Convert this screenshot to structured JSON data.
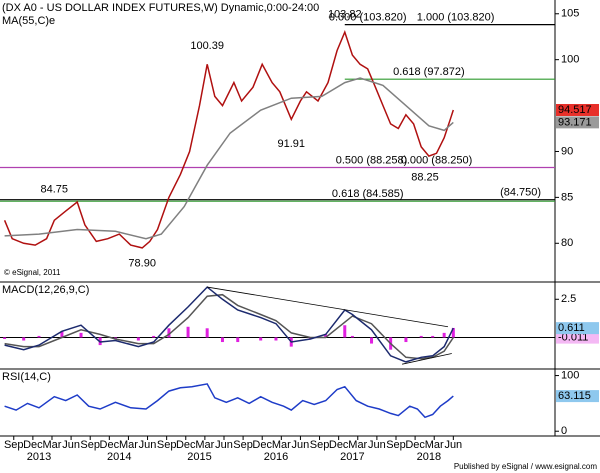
{
  "chart_data": [
    {
      "type": "line",
      "title": "(DX A0 - US DOLLAR INDEX FUTURES,W) Dynamic,0:00-24:00",
      "subtitle": "MA(55,C)e",
      "note": "© eSignal, 2011",
      "xlim": [
        2012.49,
        2019.75
      ],
      "ylim": [
        76,
        106.5
      ],
      "yticks": [
        80,
        85,
        90,
        100,
        105
      ],
      "series": [
        {
          "name": "DX A0",
          "color": "#b01010",
          "box_color": "#e8302a",
          "x": [
            2012.55,
            2012.65,
            2012.8,
            2012.95,
            2013.1,
            2013.2,
            2013.35,
            2013.5,
            2013.6,
            2013.75,
            2013.9,
            2014.05,
            2014.2,
            2014.35,
            2014.45,
            2014.55,
            2014.7,
            2014.85,
            2014.97,
            2015.1,
            2015.2,
            2015.3,
            2015.4,
            2015.55,
            2015.65,
            2015.8,
            2015.92,
            2016.05,
            2016.15,
            2016.3,
            2016.42,
            2016.5,
            2016.65,
            2016.78,
            2016.9,
            2017.0,
            2017.1,
            2017.2,
            2017.3,
            2017.4,
            2017.5,
            2017.6,
            2017.7,
            2017.8,
            2017.9,
            2018.0,
            2018.1,
            2018.2,
            2018.3,
            2018.38,
            2018.42
          ],
          "values": [
            82.5,
            80.5,
            80.0,
            79.8,
            80.5,
            82.5,
            83.5,
            84.5,
            82.0,
            80.2,
            80.5,
            81.0,
            79.8,
            79.5,
            80.2,
            81.5,
            85.0,
            87.5,
            90.0,
            95.0,
            99.5,
            96.0,
            95.0,
            97.5,
            95.5,
            97.0,
            99.5,
            97.5,
            96.5,
            93.5,
            95.5,
            96.5,
            95.5,
            97.5,
            101.0,
            103.0,
            100.5,
            99.5,
            99.0,
            97.0,
            95.0,
            93.0,
            92.5,
            94.0,
            93.0,
            90.5,
            89.5,
            89.8,
            91.5,
            93.5,
            94.517
          ]
        },
        {
          "name": "MA(55,C)e",
          "color": "#808080",
          "box_color": "#9a9a9a",
          "x": [
            2012.55,
            2013.0,
            2013.5,
            2014.0,
            2014.4,
            2014.6,
            2014.9,
            2015.2,
            2015.5,
            2015.9,
            2016.3,
            2016.7,
            2017.0,
            2017.2,
            2017.5,
            2017.8,
            2018.1,
            2018.3,
            2018.42
          ],
          "values": [
            80.8,
            81.0,
            81.5,
            81.3,
            80.5,
            81.0,
            84.0,
            88.5,
            92.0,
            94.5,
            95.8,
            96.0,
            97.5,
            98.0,
            97.2,
            95.0,
            92.8,
            92.3,
            93.171
          ]
        }
      ],
      "levels": [
        {
          "value": 103.82,
          "from": 2017.0,
          "color": "#000000",
          "labels": [
            {
              "text": "0.000 (103.820)",
              "x": 2017.3
            },
            {
              "text": "1.000 (103.820)",
              "x": 2018.45
            }
          ]
        },
        {
          "value": 97.872,
          "from": 2017.0,
          "color": "#2e9a2e",
          "labels": [
            {
              "text": "0.618 (97.872)",
              "x": 2018.1
            }
          ]
        },
        {
          "value": 88.258,
          "from": 2012.49,
          "color": "#b040b0",
          "labels": [
            {
              "text": "0.500 (88.258)",
              "x": 2017.35
            },
            {
              "text": "0.000 (88.250)",
              "x": 2018.2
            }
          ]
        },
        {
          "value": 84.75,
          "from": 2012.49,
          "color": "#000000",
          "labels": [
            {
              "text": "(84.750)",
              "x": 2019.3
            }
          ]
        },
        {
          "value": 84.585,
          "from": 2012.49,
          "color": "#2e9a2e",
          "labels": [
            {
              "text": "0.618 (84.585)",
              "x": 2017.3
            }
          ]
        }
      ],
      "annotations": [
        {
          "label": "84.75",
          "value": 84.75,
          "x": 2013.2
        },
        {
          "label": "78.90",
          "value": 78.9,
          "x": 2014.35
        },
        {
          "label": "100.39",
          "value": 100.39,
          "x": 2015.2
        },
        {
          "label": "91.91",
          "value": 91.91,
          "x": 2016.3
        },
        {
          "label": "103.82",
          "value": 103.82,
          "x": 2017.0
        },
        {
          "label": "88.25",
          "value": 88.25,
          "x": 2018.05
        }
      ]
    },
    {
      "type": "line",
      "title": "MACD(12,26,9,C)",
      "xlim": [
        2012.49,
        2019.75
      ],
      "ylim": [
        -2,
        3.5
      ],
      "yticks": [
        2.5
      ],
      "series": [
        {
          "name": "hist",
          "type": "bar",
          "color": "#e020e0",
          "x": [
            2012.55,
            2012.8,
            2013.0,
            2013.3,
            2013.55,
            2013.8,
            2014.0,
            2014.3,
            2014.5,
            2014.7,
            2014.95,
            2015.2,
            2015.4,
            2015.6,
            2015.9,
            2016.1,
            2016.3,
            2016.55,
            2016.75,
            2017.0,
            2017.1,
            2017.35,
            2017.6,
            2017.8,
            2018.0,
            2018.15,
            2018.3,
            2018.42
          ],
          "values": [
            -0.1,
            -0.2,
            0.1,
            0.4,
            0.3,
            -0.5,
            -0.1,
            -0.2,
            0.1,
            0.6,
            0.7,
            0.6,
            -0.3,
            -0.3,
            -0.2,
            -0.2,
            -0.6,
            -0.1,
            0.2,
            0.8,
            0.1,
            -0.4,
            -0.8,
            -0.3,
            0.1,
            0.1,
            0.3,
            0.622
          ]
        },
        {
          "name": "signal",
          "color": "#555555",
          "box_color": "#f4b8f4",
          "x": [
            2012.55,
            2012.8,
            2013.0,
            2013.3,
            2013.55,
            2013.8,
            2014.0,
            2014.3,
            2014.5,
            2014.7,
            2014.95,
            2015.2,
            2015.4,
            2015.6,
            2015.9,
            2016.1,
            2016.3,
            2016.55,
            2016.75,
            2017.0,
            2017.1,
            2017.35,
            2017.6,
            2017.8,
            2018.0,
            2018.15,
            2018.3,
            2018.42
          ],
          "values": [
            -0.4,
            -0.6,
            -0.6,
            0.0,
            0.5,
            0.2,
            -0.1,
            -0.4,
            -0.4,
            0.2,
            1.3,
            2.7,
            2.8,
            2.1,
            1.5,
            1.1,
            0.3,
            0.0,
            0.0,
            1.0,
            1.4,
            0.9,
            -0.4,
            -1.3,
            -1.4,
            -1.3,
            -0.9,
            -0.011
          ]
        },
        {
          "name": "macd",
          "color": "#1c2a6e",
          "box_color": "#8ec8ee",
          "x": [
            2012.55,
            2012.8,
            2013.0,
            2013.3,
            2013.55,
            2013.8,
            2014.0,
            2014.3,
            2014.5,
            2014.7,
            2014.95,
            2015.2,
            2015.4,
            2015.6,
            2015.9,
            2016.1,
            2016.3,
            2016.55,
            2016.75,
            2017.0,
            2017.1,
            2017.35,
            2017.6,
            2017.8,
            2018.0,
            2018.15,
            2018.3,
            2018.42
          ],
          "values": [
            -0.5,
            -0.8,
            -0.5,
            0.4,
            0.8,
            -0.3,
            -0.2,
            -0.6,
            -0.3,
            0.8,
            2.0,
            3.3,
            2.5,
            1.8,
            1.3,
            0.9,
            -0.3,
            -0.1,
            0.2,
            1.8,
            1.5,
            0.5,
            -1.2,
            -1.6,
            -1.3,
            -1.2,
            -0.6,
            0.611
          ]
        }
      ],
      "trendlines": [
        {
          "x": [
            2015.2,
            2018.35
          ],
          "values": [
            3.3,
            0.7
          ]
        },
        {
          "x": [
            2017.75,
            2018.4
          ],
          "values": [
            -1.75,
            -1.05
          ]
        }
      ]
    },
    {
      "type": "line",
      "title": "RSI(14,C)",
      "xlim": [
        2012.49,
        2019.75
      ],
      "ylim": [
        -5,
        110
      ],
      "yticks": [
        0,
        100
      ],
      "series": [
        {
          "name": "RSI",
          "color": "#1e3cc8",
          "box_color": "#8ec8ee",
          "x": [
            2012.55,
            2012.7,
            2012.85,
            2013.0,
            2013.2,
            2013.35,
            2013.5,
            2013.65,
            2013.8,
            2014.0,
            2014.2,
            2014.4,
            2014.55,
            2014.7,
            2014.85,
            2015.0,
            2015.2,
            2015.3,
            2015.45,
            2015.6,
            2015.75,
            2015.9,
            2016.05,
            2016.2,
            2016.3,
            2016.45,
            2016.6,
            2016.75,
            2016.9,
            2017.0,
            2017.15,
            2017.3,
            2017.45,
            2017.6,
            2017.7,
            2017.85,
            2017.95,
            2018.05,
            2018.15,
            2018.25,
            2018.35,
            2018.42
          ],
          "values": [
            45,
            38,
            50,
            42,
            62,
            55,
            65,
            45,
            40,
            52,
            42,
            40,
            55,
            72,
            78,
            80,
            85,
            60,
            52,
            60,
            50,
            62,
            52,
            45,
            38,
            55,
            48,
            55,
            75,
            80,
            55,
            45,
            40,
            32,
            28,
            45,
            40,
            25,
            30,
            45,
            55,
            63.115
          ]
        }
      ],
      "xticks": [
        {
          "value": 2012.67,
          "label": "Sep"
        },
        {
          "value": 2012.92,
          "label": "Dec"
        },
        {
          "value": 2013.17,
          "label": "Mar"
        },
        {
          "value": 2013.42,
          "label": "Jun"
        },
        {
          "value": 2013.67,
          "label": "Sep"
        },
        {
          "value": 2013.92,
          "label": "Dec"
        },
        {
          "value": 2014.17,
          "label": "Mar"
        },
        {
          "value": 2014.42,
          "label": "Jun"
        },
        {
          "value": 2014.67,
          "label": "Sep"
        },
        {
          "value": 2014.92,
          "label": "Dec"
        },
        {
          "value": 2015.17,
          "label": "Mar"
        },
        {
          "value": 2015.42,
          "label": "Jun"
        },
        {
          "value": 2015.67,
          "label": "Sep"
        },
        {
          "value": 2015.92,
          "label": "Dec"
        },
        {
          "value": 2016.17,
          "label": "Mar"
        },
        {
          "value": 2016.42,
          "label": "Jun"
        },
        {
          "value": 2016.67,
          "label": "Sep"
        },
        {
          "value": 2016.92,
          "label": "Dec"
        },
        {
          "value": 2017.17,
          "label": "Mar"
        },
        {
          "value": 2017.42,
          "label": "Jun"
        },
        {
          "value": 2017.67,
          "label": "Sep"
        },
        {
          "value": 2017.92,
          "label": "Dec"
        },
        {
          "value": 2018.17,
          "label": "Mar"
        },
        {
          "value": 2018.42,
          "label": "Jun"
        }
      ],
      "year_labels": [
        {
          "value": 2013.0,
          "label": "2013"
        },
        {
          "value": 2014.05,
          "label": "2014"
        },
        {
          "value": 2015.1,
          "label": "2015"
        },
        {
          "value": 2016.1,
          "label": "2016"
        },
        {
          "value": 2017.1,
          "label": "2017"
        },
        {
          "value": 2018.1,
          "label": "2018"
        }
      ]
    }
  ],
  "footer": "Published by eSignal / www.esignal.com"
}
